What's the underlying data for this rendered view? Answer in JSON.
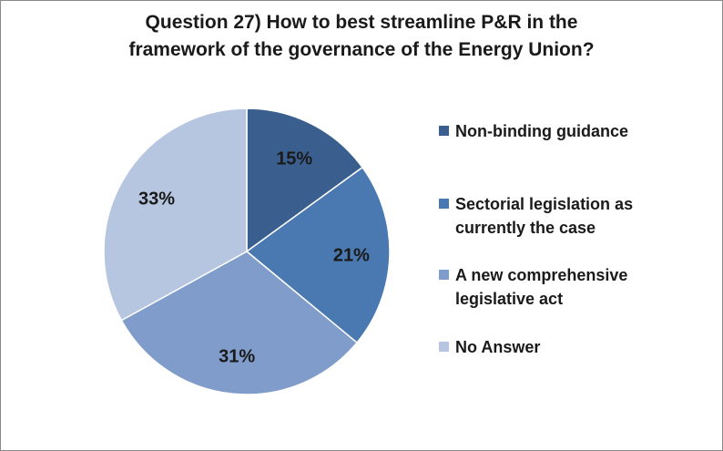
{
  "chart_data": {
    "type": "pie",
    "title": "Question 27) How to best streamline P&R in the framework of the governance of the Energy Union?",
    "title_lines": [
      "Question 27) How to best streamline P&R in the",
      "framework of the governance of the Energy Union?"
    ],
    "legend_position": "right",
    "slices": [
      {
        "label": "Non-binding guidance",
        "value": 15,
        "display": "15%",
        "color": "#3a5f8f"
      },
      {
        "label": "Sectorial legislation as currently the case",
        "value": 21,
        "display": "21%",
        "color": "#4a78b0"
      },
      {
        "label": "A new comprehensive legislative act",
        "value": 31,
        "display": "31%",
        "color": "#7f9ccb"
      },
      {
        "label": "No Answer",
        "value": 33,
        "display": "33%",
        "color": "#b7c6e0"
      }
    ],
    "legend": [
      {
        "lines": [
          "Non-binding guidance"
        ]
      },
      {
        "lines": [
          "Sectorial legislation as",
          "currently the case"
        ]
      },
      {
        "lines": [
          "A new comprehensive",
          "legislative act"
        ]
      },
      {
        "lines": [
          "No Answer"
        ]
      }
    ]
  }
}
